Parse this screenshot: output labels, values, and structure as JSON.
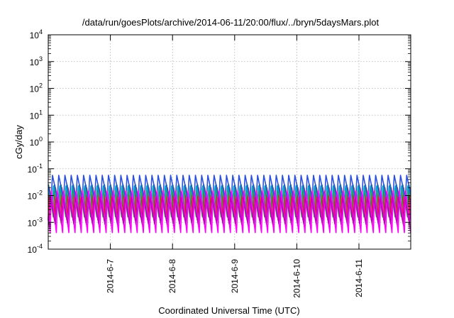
{
  "chart_data": {
    "type": "line",
    "title": "/data/run/goesPlots/archive/2014-06-11/20:00/flux/../bryn/5daysMars.plot",
    "xlabel": "Coordinated Universal Time (UTC)",
    "ylabel": "cGy/day",
    "yscale": "log",
    "ylim": [
      0.0001,
      10000
    ],
    "xlim": [
      "2014-06-06T00:00",
      "2014-06-11T20:00"
    ],
    "grid": true,
    "legend": "none",
    "y_ticks": [
      {
        "base": "10",
        "exp": "-4"
      },
      {
        "base": "10",
        "exp": "-3"
      },
      {
        "base": "10",
        "exp": "-2"
      },
      {
        "base": "10",
        "exp": "-1"
      },
      {
        "base": "10",
        "exp": "0"
      },
      {
        "base": "10",
        "exp": "1"
      },
      {
        "base": "10",
        "exp": "2"
      },
      {
        "base": "10",
        "exp": "3"
      },
      {
        "base": "10",
        "exp": "4"
      }
    ],
    "x_ticks": [
      {
        "label": "2014-6-7",
        "x": "2014-06-07T00:00"
      },
      {
        "label": "2014-6-8",
        "x": "2014-06-08T00:00"
      },
      {
        "label": "2014-6-9",
        "x": "2014-06-09T00:00"
      },
      {
        "label": "2014-6-10",
        "x": "2014-06-10T00:00"
      },
      {
        "label": "2014-6-11",
        "x": "2014-06-11T00:00"
      }
    ],
    "series": [
      {
        "color": "#e0181f",
        "peak": 0.02,
        "trough": 0.0012
      },
      {
        "color": "#1f9b3a",
        "peak": 0.03,
        "trough": 0.0015
      },
      {
        "color": "#00a8c8",
        "peak": 0.025,
        "trough": 0.004
      },
      {
        "color": "#2a50e0",
        "peak": 0.06,
        "trough": 0.007
      },
      {
        "color": "#ff00ff",
        "peak": 0.015,
        "trough": 0.0004
      },
      {
        "color": "#c000c0",
        "peak": 0.01,
        "trough": 0.0008
      }
    ]
  }
}
